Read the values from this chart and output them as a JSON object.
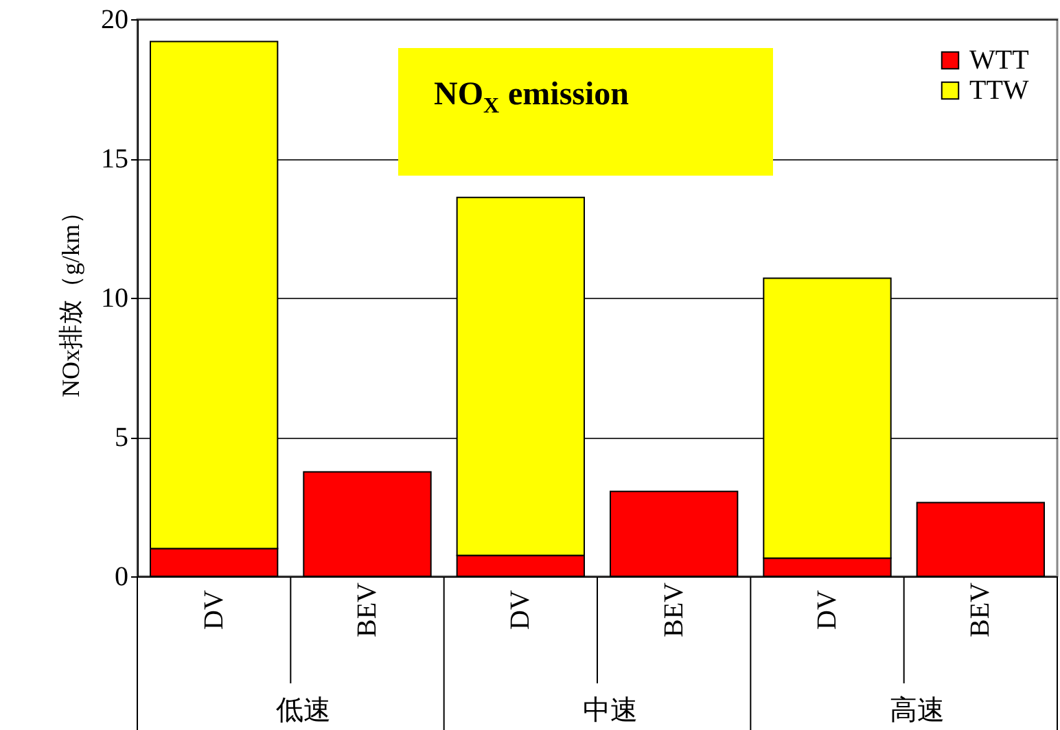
{
  "chart_data": {
    "type": "bar",
    "title": "NO$_{X}$ emission",
    "ylabel": "NOx排放（g/km）",
    "categories": [
      "DV",
      "BEV",
      "DV",
      "BEV",
      "DV",
      "BEV"
    ],
    "series": [
      {
        "name": "WTT",
        "color": "#ff0000",
        "values": [
          1.0,
          3.75,
          0.75,
          3.05,
          0.65,
          2.65
        ]
      },
      {
        "name": "TTW",
        "color": "#ffff00",
        "values": [
          18.2,
          null,
          12.85,
          null,
          10.05,
          null
        ]
      }
    ],
    "stacked": true,
    "ylim": [
      0,
      20
    ],
    "yticks": [
      0,
      5,
      10,
      15,
      20
    ],
    "grid": "y",
    "legend": "top right",
    "annotations": [
      "低速",
      "中速",
      "高速"
    ]
  }
}
